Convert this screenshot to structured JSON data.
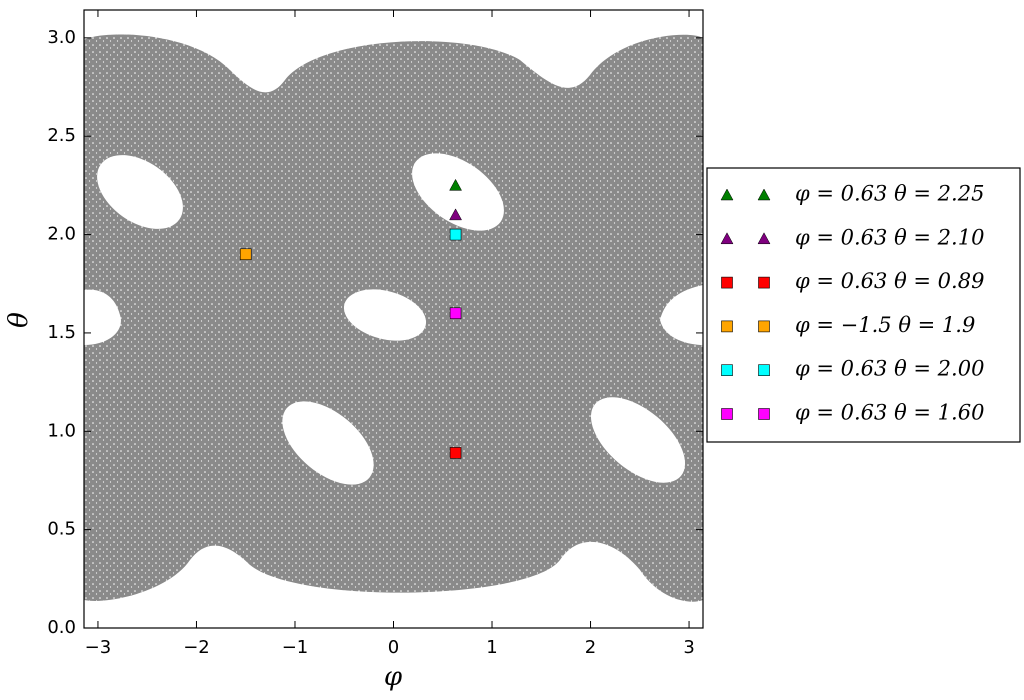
{
  "chart_data": {
    "type": "scatter",
    "xlabel": "φ",
    "ylabel": "θ",
    "xlim": [
      -3.1416,
      3.1416
    ],
    "ylim": [
      0,
      3.1416
    ],
    "xticks": [
      {
        "value": -3,
        "label": "−3"
      },
      {
        "value": -2,
        "label": "−2"
      },
      {
        "value": -1,
        "label": "−1"
      },
      0,
      1,
      2,
      3
    ],
    "yticks": [
      {
        "value": 0,
        "label": "0.0"
      },
      0.5,
      {
        "value": 1,
        "label": "1.0"
      },
      1.5,
      {
        "value": 2,
        "label": "2.0"
      },
      2.5,
      {
        "value": 3,
        "label": "3.0"
      }
    ],
    "legend": "right",
    "series": [
      {
        "name": "φ = 0.63 θ = 2.25",
        "color": "#007f00",
        "marker": "triangle",
        "x": [
          0.63
        ],
        "y": [
          2.25
        ]
      },
      {
        "name": "φ = 0.63 θ = 2.10",
        "color": "#7f007f",
        "marker": "triangle",
        "x": [
          0.63
        ],
        "y": [
          2.1
        ]
      },
      {
        "name": "φ = 0.63 θ = 0.89",
        "color": "#ff0000",
        "marker": "square",
        "x": [
          0.63
        ],
        "y": [
          0.89
        ]
      },
      {
        "name": "φ = −1.5 θ = 1.9",
        "color": "#ffa500",
        "marker": "square",
        "x": [
          -1.5
        ],
        "y": [
          1.9
        ]
      },
      {
        "name": "φ = 0.63 θ = 2.00",
        "color": "#00ffff",
        "marker": "square",
        "x": [
          0.63
        ],
        "y": [
          2.0
        ]
      },
      {
        "name": "φ = 0.63 θ = 1.60",
        "color": "#ff00ff",
        "marker": "square",
        "x": [
          0.63
        ],
        "y": [
          1.6
        ]
      }
    ]
  }
}
